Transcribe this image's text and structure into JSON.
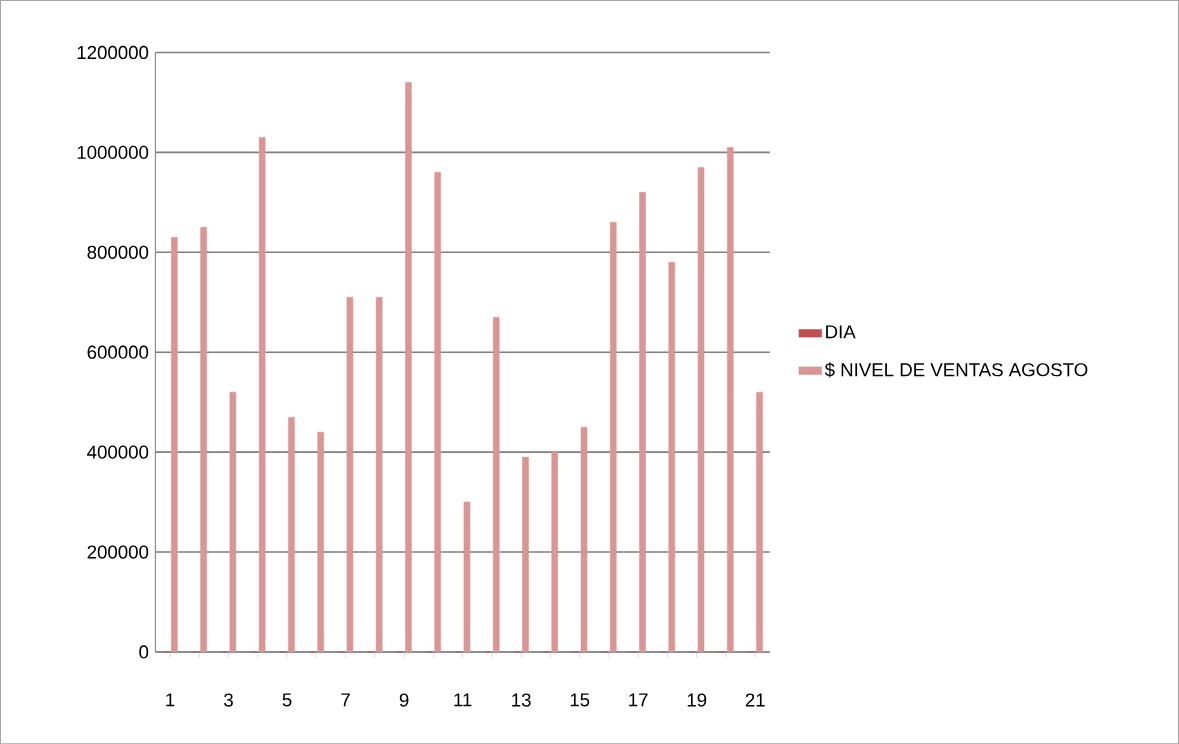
{
  "chart_data": {
    "type": "bar",
    "categories": [
      "1",
      null,
      "3",
      null,
      "5",
      null,
      "7",
      null,
      "9",
      null,
      "11",
      null,
      "13",
      null,
      "15",
      null,
      "17",
      null,
      "19",
      null,
      "21"
    ],
    "series": [
      {
        "name": "DIA",
        "color": "#c0504d",
        "values": [
          1,
          2,
          3,
          4,
          5,
          6,
          7,
          8,
          9,
          10,
          11,
          12,
          13,
          14,
          15,
          16,
          17,
          18,
          19,
          20,
          21
        ]
      },
      {
        "name": "$ NIVEL DE VENTAS AGOSTO",
        "color": "#d99694",
        "values": [
          830000,
          850000,
          520000,
          1030000,
          470000,
          440000,
          710000,
          710000,
          1140000,
          960000,
          300000,
          670000,
          390000,
          400000,
          450000,
          860000,
          920000,
          780000,
          970000,
          1010000,
          520000
        ]
      }
    ],
    "ylim": [
      0,
      1200000
    ],
    "yticks": [
      0,
      200000,
      400000,
      600000,
      800000,
      1000000,
      1200000
    ],
    "grid": "y",
    "legend": "right"
  }
}
